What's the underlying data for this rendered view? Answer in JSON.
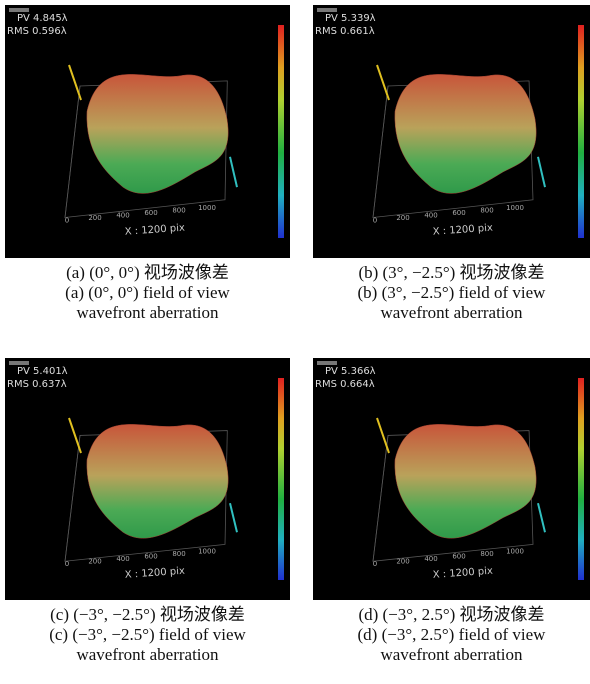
{
  "panels": [
    {
      "pv": "PV 4.845λ",
      "rms": "RMS 0.596λ",
      "x_axis_label": "X : 1200 pix",
      "x_ticks": [
        "0",
        "200",
        "400",
        "600",
        "800",
        "1000"
      ],
      "caption_zh": "(a) (0°, 0°) 视场波像差",
      "caption_en": [
        "(a) (0°, 0°) field of view",
        "wavefront aberration"
      ]
    },
    {
      "pv": "PV 5.339λ",
      "rms": "RMS 0.661λ",
      "x_axis_label": "X : 1200 pix",
      "x_ticks": [
        "0",
        "200",
        "400",
        "600",
        "800",
        "1000"
      ],
      "caption_zh": "(b) (3°, −2.5°) 视场波像差",
      "caption_en": [
        "(b) (3°, −2.5°) field of view",
        "wavefront aberration"
      ]
    },
    {
      "pv": "PV 5.401λ",
      "rms": "RMS 0.637λ",
      "x_axis_label": "X : 1200 pix",
      "x_ticks": [
        "0",
        "200",
        "400",
        "600",
        "800",
        "1000"
      ],
      "caption_zh": "(c) (−3°, −2.5°) 视场波像差",
      "caption_en": [
        "(c) (−3°, −2.5°) field of view",
        "wavefront aberration"
      ]
    },
    {
      "pv": "PV 5.366λ",
      "rms": "RMS 0.664λ",
      "x_axis_label": "X : 1200 pix",
      "x_ticks": [
        "0",
        "200",
        "400",
        "600",
        "800",
        "1000"
      ],
      "caption_zh": "(d) (−3°, 2.5°) 视场波像差",
      "caption_en": [
        "(d) (−3°, 2.5°) field of view",
        "wavefront aberration"
      ]
    }
  ]
}
